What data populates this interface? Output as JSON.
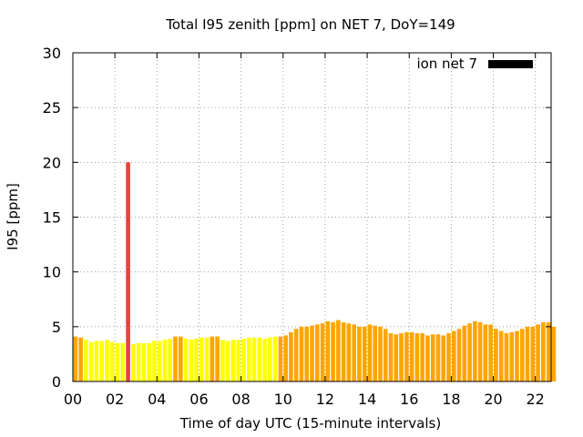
{
  "chart_data": {
    "type": "bar",
    "title": "Total I95 zenith [ppm] on NET 7, DoY=149",
    "xlabel": "Time of day UTC (15-minute intervals)",
    "ylabel": "I95 [ppm]",
    "ylim": [
      0,
      30
    ],
    "xlim": [
      0,
      22.75
    ],
    "y_ticks": [
      "0",
      "5",
      "10",
      "15",
      "20",
      "25",
      "30"
    ],
    "x_ticks": [
      "00",
      "02",
      "04",
      "06",
      "08",
      "10",
      "12",
      "14",
      "16",
      "18",
      "20",
      "22"
    ],
    "grid": true,
    "legend": {
      "label": "ion net 7",
      "color": "#000000",
      "position": "top-right"
    },
    "colors": {
      "yellow": "#ffff00",
      "orange": "#ffa500",
      "red": "#e8413c"
    },
    "interval_hours": 0.25,
    "values": [
      4.1,
      4.0,
      3.8,
      3.6,
      3.7,
      3.7,
      3.8,
      3.6,
      3.5,
      3.5,
      20.0,
      3.4,
      3.5,
      3.5,
      3.5,
      3.7,
      3.7,
      3.8,
      3.9,
      4.1,
      4.1,
      3.9,
      3.8,
      3.9,
      4.0,
      4.0,
      4.1,
      4.1,
      3.8,
      3.7,
      3.8,
      3.8,
      3.9,
      4.0,
      4.0,
      4.0,
      3.9,
      4.0,
      4.1,
      4.1,
      4.2,
      4.5,
      4.8,
      5.0,
      5.0,
      5.1,
      5.2,
      5.3,
      5.5,
      5.4,
      5.6,
      5.4,
      5.3,
      5.2,
      5.0,
      5.0,
      5.2,
      5.1,
      5.0,
      4.8,
      4.4,
      4.3,
      4.4,
      4.5,
      4.5,
      4.4,
      4.4,
      4.2,
      4.3,
      4.3,
      4.2,
      4.4,
      4.6,
      4.8,
      5.1,
      5.3,
      5.5,
      5.4,
      5.2,
      5.2,
      4.8,
      4.6,
      4.4,
      4.5,
      4.6,
      4.8,
      5.0,
      5.0,
      5.2,
      5.4,
      5.4,
      5.0
    ],
    "bar_colors": [
      "orange",
      "orange",
      "yellow",
      "yellow",
      "yellow",
      "yellow",
      "yellow",
      "yellow",
      "yellow",
      "yellow",
      "red",
      "yellow",
      "yellow",
      "yellow",
      "yellow",
      "yellow",
      "yellow",
      "yellow",
      "yellow",
      "orange",
      "orange",
      "yellow",
      "yellow",
      "yellow",
      "yellow",
      "yellow",
      "orange",
      "orange",
      "yellow",
      "yellow",
      "yellow",
      "yellow",
      "yellow",
      "yellow",
      "yellow",
      "yellow",
      "yellow",
      "yellow",
      "yellow",
      "orange",
      "orange",
      "orange",
      "orange",
      "orange",
      "orange",
      "orange",
      "orange",
      "orange",
      "orange",
      "orange",
      "orange",
      "orange",
      "orange",
      "orange",
      "orange",
      "orange",
      "orange",
      "orange",
      "orange",
      "orange",
      "orange",
      "orange",
      "orange",
      "orange",
      "orange",
      "orange",
      "orange",
      "orange",
      "orange",
      "orange",
      "orange",
      "orange",
      "orange",
      "orange",
      "orange",
      "orange",
      "orange",
      "orange",
      "orange",
      "orange",
      "orange",
      "orange",
      "orange",
      "orange",
      "orange",
      "orange",
      "orange",
      "orange",
      "orange",
      "orange",
      "orange",
      "orange"
    ]
  }
}
